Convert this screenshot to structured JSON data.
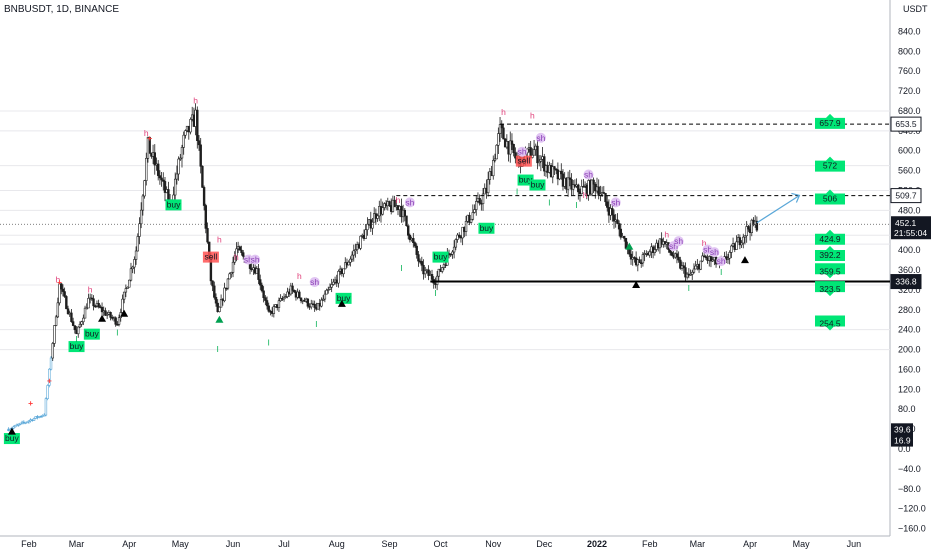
{
  "chart_data": {
    "type": "candlestick",
    "title": "BNBUSDT, 1D, BINANCE",
    "currency": "USDT",
    "y_ticks": [
      -160,
      -120,
      -80,
      -40,
      0,
      40,
      80,
      120,
      160,
      200,
      240,
      280,
      320,
      360,
      400,
      440,
      480,
      520,
      560,
      600,
      640,
      680,
      720,
      760,
      800,
      840
    ],
    "x_ticks": [
      "Feb",
      "Mar",
      "Apr",
      "May",
      "Jun",
      "Jul",
      "Aug",
      "Sep",
      "Oct",
      "Nov",
      "Dec",
      "2022",
      "Feb",
      "Mar",
      "Apr",
      "May",
      "Jun"
    ],
    "ylim": [
      -175,
      875
    ],
    "price_path": [
      {
        "date": "2021-01-20",
        "price": 40
      },
      {
        "date": "2021-02-10",
        "price": 70
      },
      {
        "date": "2021-02-19",
        "price": 330
      },
      {
        "date": "2021-03-01",
        "price": 230
      },
      {
        "date": "2021-03-08",
        "price": 300
      },
      {
        "date": "2021-03-25",
        "price": 255
      },
      {
        "date": "2021-04-05",
        "price": 400
      },
      {
        "date": "2021-04-12",
        "price": 610
      },
      {
        "date": "2021-04-25",
        "price": 490
      },
      {
        "date": "2021-05-03",
        "price": 620
      },
      {
        "date": "2021-05-10",
        "price": 670
      },
      {
        "date": "2021-05-19",
        "price": 340
      },
      {
        "date": "2021-05-23",
        "price": 270
      },
      {
        "date": "2021-06-03",
        "price": 400
      },
      {
        "date": "2021-06-15",
        "price": 360
      },
      {
        "date": "2021-06-22",
        "price": 270
      },
      {
        "date": "2021-07-05",
        "price": 320
      },
      {
        "date": "2021-07-20",
        "price": 280
      },
      {
        "date": "2021-08-10",
        "price": 390
      },
      {
        "date": "2021-08-25",
        "price": 480
      },
      {
        "date": "2021-09-07",
        "price": 490
      },
      {
        "date": "2021-09-20",
        "price": 360
      },
      {
        "date": "2021-09-28",
        "price": 340
      },
      {
        "date": "2021-10-10",
        "price": 420
      },
      {
        "date": "2021-10-28",
        "price": 520
      },
      {
        "date": "2021-11-05",
        "price": 640
      },
      {
        "date": "2021-11-15",
        "price": 580
      },
      {
        "date": "2021-11-25",
        "price": 600
      },
      {
        "date": "2021-12-04",
        "price": 560
      },
      {
        "date": "2021-12-20",
        "price": 520
      },
      {
        "date": "2022-01-01",
        "price": 530
      },
      {
        "date": "2022-01-10",
        "price": 470
      },
      {
        "date": "2022-01-24",
        "price": 370
      },
      {
        "date": "2022-02-08",
        "price": 420
      },
      {
        "date": "2022-02-24",
        "price": 345
      },
      {
        "date": "2022-03-05",
        "price": 385
      },
      {
        "date": "2022-03-15",
        "price": 370
      },
      {
        "date": "2022-03-31",
        "price": 445
      },
      {
        "date": "2022-04-05",
        "price": 452.1
      }
    ],
    "projection": {
      "from_date": "2022-04-05",
      "to_date": "2022-04-30",
      "from_price": 455,
      "to_price": 510
    },
    "horizontal_lines": [
      {
        "price": 653.5,
        "style": "dashed",
        "label": "653.5",
        "from_date": "2021-11-05"
      },
      {
        "price": 509.7,
        "style": "dashed",
        "label": "509.7",
        "from_date": "2021-09-05"
      },
      {
        "price": 336.8,
        "style": "solid",
        "label": "336.8",
        "from_date": "2021-09-25"
      }
    ],
    "current_price": {
      "price": 452.1,
      "label": "452.1",
      "countdown": "21:55:04"
    },
    "left_tags": [
      {
        "price": 39.6,
        "label": "39.6"
      },
      {
        "price": 16.9,
        "label": "16.9"
      }
    ],
    "target_tags": [
      {
        "price": 657.9,
        "label": "657.9",
        "dir": "up"
      },
      {
        "price": 572,
        "label": "572",
        "dir": "up"
      },
      {
        "price": 506,
        "label": "506",
        "dir": "up"
      },
      {
        "price": 424.9,
        "label": "424.9",
        "dir": "up"
      },
      {
        "price": 392.2,
        "label": "392.2",
        "dir": "up"
      },
      {
        "price": 359.5,
        "label": "359.5",
        "dir": "down"
      },
      {
        "price": 323.5,
        "label": "323.5",
        "dir": "down"
      },
      {
        "price": 254.5,
        "label": "254.5",
        "dir": "down"
      }
    ],
    "annotations": [
      {
        "date": "2021-01-22",
        "price": 20,
        "text": "buy",
        "kind": "buy"
      },
      {
        "date": "2021-03-01",
        "price": 205,
        "text": "buy",
        "kind": "buy"
      },
      {
        "date": "2021-03-10",
        "price": 230,
        "text": "buy",
        "kind": "buy"
      },
      {
        "date": "2021-04-27",
        "price": 490,
        "text": "buy",
        "kind": "buy"
      },
      {
        "date": "2021-05-19",
        "price": 385,
        "text": "sell",
        "kind": "sell"
      },
      {
        "date": "2021-08-05",
        "price": 302,
        "text": "buy",
        "kind": "buy"
      },
      {
        "date": "2021-10-01",
        "price": 385,
        "text": "buy",
        "kind": "buy"
      },
      {
        "date": "2021-10-28",
        "price": 443,
        "text": "buy",
        "kind": "buy"
      },
      {
        "date": "2021-11-19",
        "price": 578,
        "text": "sell",
        "kind": "sell"
      },
      {
        "date": "2021-11-20",
        "price": 540,
        "text": "buy",
        "kind": "buy"
      },
      {
        "date": "2021-11-27",
        "price": 530,
        "text": "buy",
        "kind": "buy"
      },
      {
        "date": "2021-02-18",
        "price": 335,
        "text": "h",
        "kind": "h"
      },
      {
        "date": "2021-03-09",
        "price": 315,
        "text": "h",
        "kind": "h"
      },
      {
        "date": "2021-04-11",
        "price": 630,
        "text": "h",
        "kind": "h"
      },
      {
        "date": "2021-05-10",
        "price": 695,
        "text": "h",
        "kind": "h"
      },
      {
        "date": "2021-05-24",
        "price": 415,
        "text": "h",
        "kind": "h"
      },
      {
        "date": "2021-06-03",
        "price": 380,
        "text": "h",
        "kind": "h"
      },
      {
        "date": "2021-07-10",
        "price": 342,
        "text": "h",
        "kind": "h"
      },
      {
        "date": "2021-09-06",
        "price": 495,
        "text": "h",
        "kind": "h"
      },
      {
        "date": "2021-11-07",
        "price": 672,
        "text": "h",
        "kind": "h"
      },
      {
        "date": "2021-11-24",
        "price": 665,
        "text": "h",
        "kind": "h"
      },
      {
        "date": "2021-12-25",
        "price": 505,
        "text": "h",
        "kind": "h"
      },
      {
        "date": "2022-02-11",
        "price": 425,
        "text": "h",
        "kind": "h"
      },
      {
        "date": "2022-03-05",
        "price": 408,
        "text": "h",
        "kind": "h"
      },
      {
        "date": "2021-06-10",
        "price": 375,
        "text": "sh",
        "kind": "sh"
      },
      {
        "date": "2021-06-14",
        "price": 375,
        "text": "sh",
        "kind": "sh"
      },
      {
        "date": "2021-07-19",
        "price": 330,
        "text": "sh",
        "kind": "sh"
      },
      {
        "date": "2021-09-13",
        "price": 490,
        "text": "sh",
        "kind": "sh"
      },
      {
        "date": "2021-11-18",
        "price": 592,
        "text": "sh",
        "kind": "sh"
      },
      {
        "date": "2021-11-29",
        "price": 620,
        "text": "sh",
        "kind": "sh"
      },
      {
        "date": "2021-12-27",
        "price": 546,
        "text": "sh",
        "kind": "sh"
      },
      {
        "date": "2022-02-15",
        "price": 402,
        "text": "sh",
        "kind": "sh"
      },
      {
        "date": "2022-02-18",
        "price": 412,
        "text": "sh",
        "kind": "sh"
      },
      {
        "date": "2022-03-07",
        "price": 395,
        "text": "sh",
        "kind": "sh"
      },
      {
        "date": "2022-03-11",
        "price": 390,
        "text": "sh",
        "kind": "sh"
      },
      {
        "date": "2022-03-15",
        "price": 372,
        "text": "sh",
        "kind": "sh"
      },
      {
        "date": "2022-01-12",
        "price": 490,
        "text": "sh",
        "kind": "sh"
      },
      {
        "date": "2021-03-01",
        "price": 215,
        "text": "l",
        "kind": "l"
      },
      {
        "date": "2021-03-25",
        "price": 228,
        "text": "l",
        "kind": "l"
      },
      {
        "date": "2021-05-23",
        "price": 195,
        "text": "l",
        "kind": "l"
      },
      {
        "date": "2021-06-22",
        "price": 208,
        "text": "l",
        "kind": "l"
      },
      {
        "date": "2021-07-20",
        "price": 245,
        "text": "l",
        "kind": "l"
      },
      {
        "date": "2021-09-08",
        "price": 358,
        "text": "l",
        "kind": "l"
      },
      {
        "date": "2021-09-28",
        "price": 308,
        "text": "l",
        "kind": "l"
      },
      {
        "date": "2021-11-15",
        "price": 512,
        "text": "l",
        "kind": "l"
      },
      {
        "date": "2021-12-04",
        "price": 490,
        "text": "l",
        "kind": "l"
      },
      {
        "date": "2021-12-20",
        "price": 485,
        "text": "l",
        "kind": "l"
      },
      {
        "date": "2022-01-24",
        "price": 325,
        "text": "l",
        "kind": "l"
      },
      {
        "date": "2022-02-24",
        "price": 318,
        "text": "l",
        "kind": "l"
      },
      {
        "date": "2022-03-15",
        "price": 350,
        "text": "l",
        "kind": "l"
      },
      {
        "date": "2021-01-22",
        "price": 35,
        "text": "",
        "kind": "tri-up-black"
      },
      {
        "date": "2021-03-16",
        "price": 262,
        "text": "",
        "kind": "tri-up-black"
      },
      {
        "date": "2021-03-29",
        "price": 272,
        "text": "",
        "kind": "tri-up-black"
      },
      {
        "date": "2021-08-04",
        "price": 292,
        "text": "",
        "kind": "tri-up-black"
      },
      {
        "date": "2022-01-24",
        "price": 330,
        "text": "",
        "kind": "tri-up-black"
      },
      {
        "date": "2022-03-29",
        "price": 380,
        "text": "",
        "kind": "tri-up-black"
      },
      {
        "date": "2021-05-24",
        "price": 260,
        "text": "",
        "kind": "tri-up-green"
      },
      {
        "date": "2022-01-20",
        "price": 407,
        "text": "",
        "kind": "tri-up-green"
      },
      {
        "date": "2021-02-02",
        "price": 86,
        "text": "",
        "kind": "cross"
      },
      {
        "date": "2021-02-13",
        "price": 132,
        "text": "",
        "kind": "cross"
      },
      {
        "date": "2021-02-19",
        "price": 330,
        "text": "",
        "kind": "cross"
      },
      {
        "date": "2021-04-13",
        "price": 620,
        "text": "",
        "kind": "cross"
      }
    ]
  }
}
